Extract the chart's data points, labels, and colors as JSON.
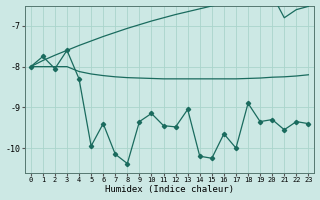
{
  "xlabel": "Humidex (Indice chaleur)",
  "bg_color": "#cce8e4",
  "line_color": "#1a6b5e",
  "grid_color": "#aad4cc",
  "xlim": [
    -0.5,
    23.5
  ],
  "ylim": [
    -10.6,
    -6.5
  ],
  "yticks": [
    -10,
    -9,
    -8,
    -7
  ],
  "xticks": [
    0,
    1,
    2,
    3,
    4,
    5,
    6,
    7,
    8,
    9,
    10,
    11,
    12,
    13,
    14,
    15,
    16,
    17,
    18,
    19,
    20,
    21,
    22,
    23
  ],
  "line1_x": [
    0,
    1,
    2,
    3,
    4,
    5,
    6,
    7,
    8,
    9,
    10,
    11,
    12,
    13,
    14,
    15,
    16,
    17,
    18,
    19,
    20,
    21,
    22,
    23
  ],
  "line1_y": [
    -8.0,
    -7.85,
    -7.72,
    -7.6,
    -7.48,
    -7.37,
    -7.26,
    -7.16,
    -7.06,
    -6.97,
    -6.88,
    -6.8,
    -6.72,
    -6.65,
    -6.58,
    -6.51,
    -6.45,
    -6.39,
    -6.34,
    -6.29,
    -6.24,
    -6.8,
    -6.6,
    -6.52
  ],
  "line2_x": [
    0,
    1,
    2,
    3,
    4,
    5,
    6,
    7,
    8,
    9,
    10,
    11,
    12,
    13,
    14,
    15,
    16,
    17,
    18,
    19,
    20,
    21,
    22,
    23
  ],
  "line2_y": [
    -8.0,
    -8.0,
    -8.0,
    -8.0,
    -8.12,
    -8.18,
    -8.22,
    -8.25,
    -8.27,
    -8.28,
    -8.29,
    -8.3,
    -8.3,
    -8.3,
    -8.3,
    -8.3,
    -8.3,
    -8.3,
    -8.29,
    -8.28,
    -8.26,
    -8.25,
    -8.23,
    -8.2
  ],
  "line3_x": [
    0,
    1,
    2,
    3,
    4,
    5,
    6,
    7,
    8,
    9,
    10,
    11,
    12,
    13,
    14,
    15,
    16,
    17,
    18,
    19,
    20,
    21,
    22,
    23
  ],
  "line3_y": [
    -8.0,
    -7.75,
    -8.05,
    -7.6,
    -8.3,
    -9.95,
    -9.4,
    -10.15,
    -10.38,
    -9.35,
    -9.15,
    -9.45,
    -9.48,
    -9.05,
    -10.2,
    -10.25,
    -9.65,
    -10.0,
    -8.9,
    -9.35,
    -9.3,
    -9.55,
    -9.35,
    -9.4
  ]
}
